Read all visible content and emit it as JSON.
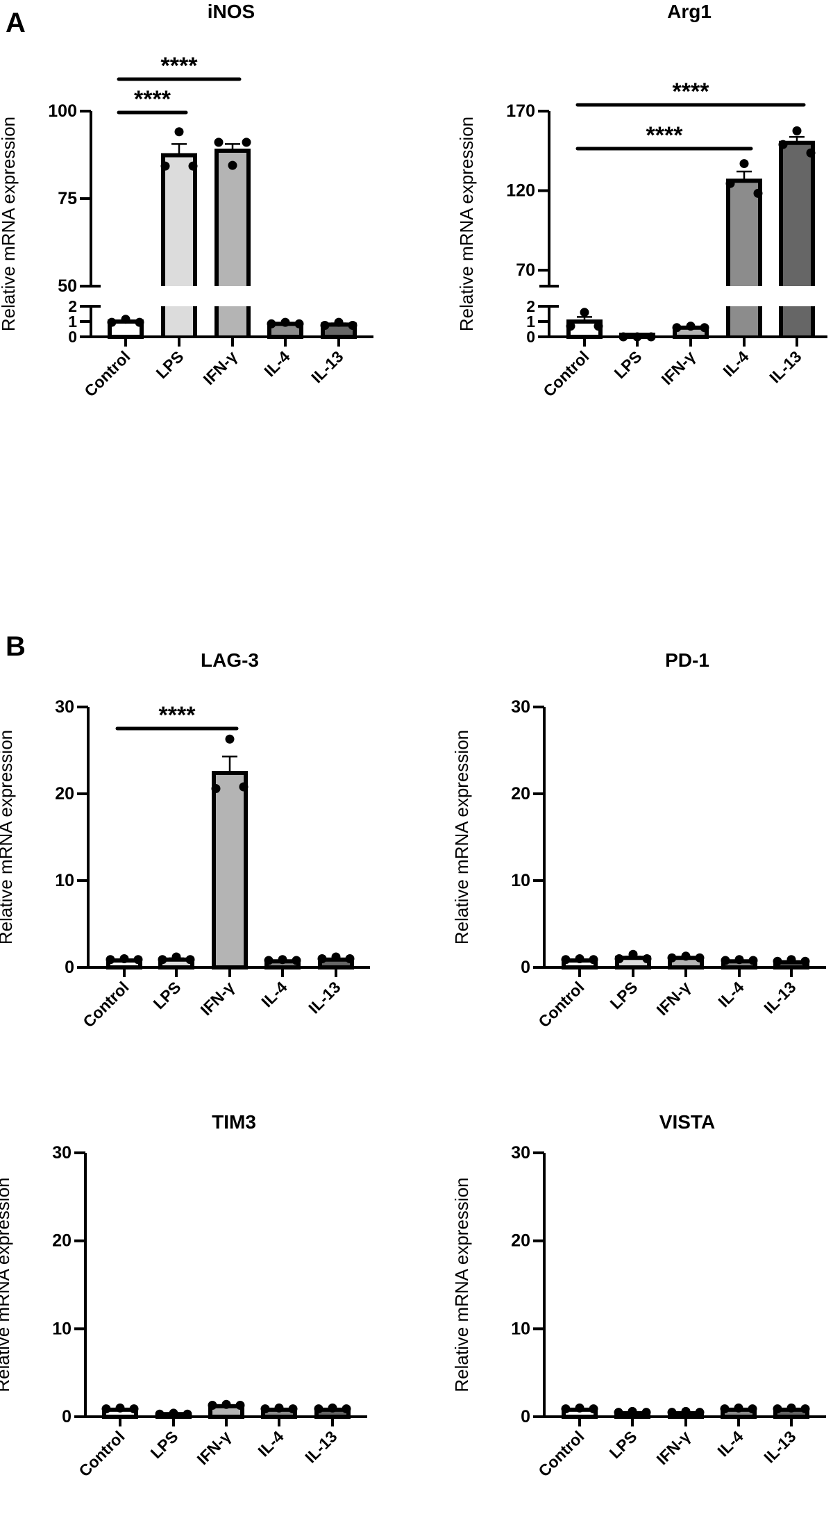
{
  "figure": {
    "letters": {
      "A": "A",
      "B": "B"
    },
    "bar_colors": [
      "#ffffff",
      "#dcdcdc",
      "#b4b4b4",
      "#8c8c8c",
      "#666666"
    ],
    "point_color": "#000000"
  },
  "chart_data": [
    {
      "type": "bar",
      "panel": "A",
      "title": "iNOS",
      "ylabel": "Relative mRNA expression",
      "categories": [
        "Control",
        "LPS",
        "IFN-γ",
        "IL-4",
        "IL-13"
      ],
      "y_axis_break": {
        "lower": [
          0,
          2
        ],
        "upper": [
          50,
          100
        ]
      },
      "yticks_lower": [
        "0",
        "1",
        "2"
      ],
      "yticks_upper": [
        "50",
        "75",
        "100"
      ],
      "means": [
        1.0,
        87.4,
        88.7,
        0.85,
        0.8
      ],
      "sem": [
        0.06,
        3.2,
        1.9,
        0.04,
        0.08
      ],
      "points": [
        [
          0.95,
          1.15,
          0.95
        ],
        [
          84.3,
          94.1,
          84.3
        ],
        [
          91.1,
          84.5,
          91.1
        ],
        [
          0.85,
          0.95,
          0.85
        ],
        [
          0.75,
          0.95,
          0.75
        ]
      ],
      "significance": [
        {
          "from": "Control",
          "to": "LPS",
          "label": "****"
        },
        {
          "from": "Control",
          "to": "IFN-γ",
          "label": "****"
        }
      ]
    },
    {
      "type": "bar",
      "panel": "A",
      "title": "Arg1",
      "ylabel": "Relative mRNA expression",
      "categories": [
        "Control",
        "LPS",
        "IFN-γ",
        "IL-4",
        "IL-13"
      ],
      "y_axis_break": {
        "lower": [
          0,
          2
        ],
        "upper": [
          60,
          170
        ]
      },
      "yticks_lower": [
        "0",
        "1",
        "2"
      ],
      "yticks_upper": [
        "70",
        "120",
        "170"
      ],
      "means": [
        1.0,
        0.02,
        0.6,
        126.2,
        150.0
      ],
      "sem": [
        0.3,
        0.01,
        0.05,
        5.8,
        3.8
      ],
      "points": [
        [
          0.7,
          1.6,
          0.7
        ],
        [
          0,
          0,
          0
        ],
        [
          0.6,
          0.7,
          0.6
        ],
        [
          124.5,
          137.0,
          118.3
        ],
        [
          149.0,
          157.6,
          143.7
        ]
      ],
      "significance": [
        {
          "from": "Control",
          "to": "IL-4",
          "label": "****"
        },
        {
          "from": "Control",
          "to": "IL-13",
          "label": "****"
        }
      ]
    },
    {
      "type": "bar",
      "panel": "B",
      "title": "LAG-3",
      "ylabel": "Relative mRNA expression",
      "categories": [
        "Control",
        "LPS",
        "IFN-γ",
        "IL-4",
        "IL-13"
      ],
      "ylim": [
        0,
        30
      ],
      "yticks": [
        "0",
        "10",
        "20",
        "30"
      ],
      "means": [
        0.8,
        0.9,
        22.4,
        0.7,
        0.9
      ],
      "sem": [
        0.05,
        0.15,
        1.9,
        0.05,
        0.1
      ],
      "points": [
        [
          0.9,
          1.0,
          0.9
        ],
        [
          0.9,
          1.2,
          0.9
        ],
        [
          20.6,
          26.3,
          20.8
        ],
        [
          0.8,
          0.9,
          0.8
        ],
        [
          1.0,
          1.2,
          1.0
        ]
      ],
      "significance": [
        {
          "from": "Control",
          "to": "IFN-γ",
          "label": "****"
        }
      ]
    },
    {
      "type": "bar",
      "panel": "B",
      "title": "PD-1",
      "ylabel": "Relative mRNA expression",
      "categories": [
        "Control",
        "LPS",
        "IFN-γ",
        "IL-4",
        "IL-13"
      ],
      "ylim": [
        0,
        30
      ],
      "yticks": [
        "0",
        "10",
        "20",
        "30"
      ],
      "means": [
        0.8,
        1.1,
        1.1,
        0.7,
        0.6
      ],
      "sem": [
        0.05,
        0.15,
        0.1,
        0.05,
        0.1
      ],
      "points": [
        [
          0.9,
          1.0,
          0.9
        ],
        [
          1.0,
          1.5,
          1.0
        ],
        [
          1.1,
          1.3,
          1.1
        ],
        [
          0.8,
          0.9,
          0.8
        ],
        [
          0.7,
          0.9,
          0.7
        ]
      ],
      "significance": []
    },
    {
      "type": "bar",
      "panel": "B",
      "title": "TIM3",
      "ylabel": "Relative mRNA expression",
      "categories": [
        "Control",
        "LPS",
        "IFN-γ",
        "IL-4",
        "IL-13"
      ],
      "ylim": [
        0,
        30
      ],
      "yticks": [
        "0",
        "10",
        "20",
        "30"
      ],
      "means": [
        0.8,
        0.3,
        1.2,
        0.8,
        0.8
      ],
      "sem": [
        0.05,
        0.02,
        0.05,
        0.05,
        0.05
      ],
      "points": [
        [
          0.9,
          1.0,
          0.9
        ],
        [
          0.3,
          0.4,
          0.3
        ],
        [
          1.3,
          1.4,
          1.3
        ],
        [
          0.9,
          1.0,
          0.9
        ],
        [
          0.9,
          1.0,
          0.9
        ]
      ],
      "significance": []
    },
    {
      "type": "bar",
      "panel": "B",
      "title": "VISTA",
      "ylabel": "Relative mRNA expression",
      "categories": [
        "Control",
        "LPS",
        "IFN-γ",
        "IL-4",
        "IL-13"
      ],
      "ylim": [
        0,
        30
      ],
      "yticks": [
        "0",
        "10",
        "20",
        "30"
      ],
      "means": [
        0.8,
        0.4,
        0.4,
        0.8,
        0.8
      ],
      "sem": [
        0.05,
        0.03,
        0.03,
        0.05,
        0.05
      ],
      "points": [
        [
          0.9,
          1.0,
          0.9
        ],
        [
          0.5,
          0.6,
          0.5
        ],
        [
          0.5,
          0.6,
          0.5
        ],
        [
          0.9,
          1.0,
          0.9
        ],
        [
          0.9,
          1.0,
          0.9
        ]
      ],
      "significance": []
    }
  ]
}
